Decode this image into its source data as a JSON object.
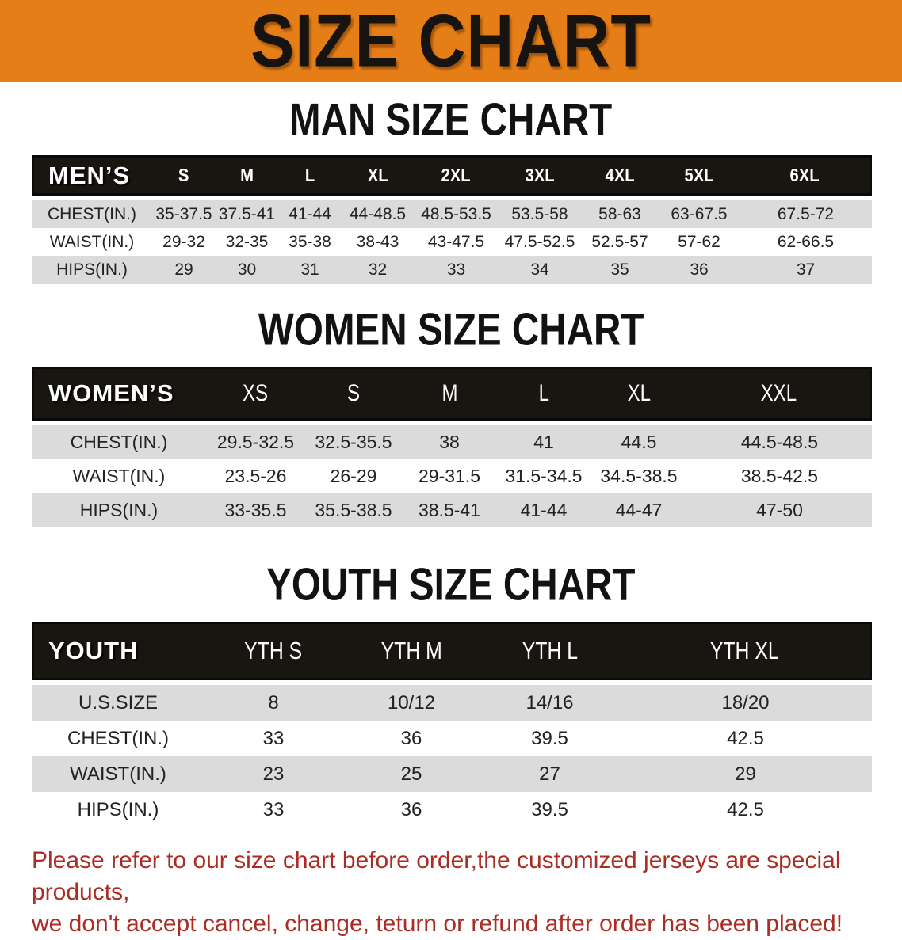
{
  "banner": {
    "title": "SIZE CHART",
    "bg_color": "#e67e17",
    "text_color": "#161310"
  },
  "sections": {
    "men": {
      "heading": "MAN SIZE CHART",
      "header_label": "MEN’S",
      "columns": [
        "S",
        "M",
        "L",
        "XL",
        "2XL",
        "3XL",
        "4XL",
        "5XL",
        "6XL"
      ],
      "rows": [
        {
          "label": "CHEST(IN.)",
          "values": [
            "35-37.5",
            "37.5-41",
            "41-44",
            "44-48.5",
            "48.5-53.5",
            "53.5-58",
            "58-63",
            "63-67.5",
            "67.5-72"
          ]
        },
        {
          "label": "WAIST(IN.)",
          "values": [
            "29-32",
            "32-35",
            "35-38",
            "38-43",
            "43-47.5",
            "47.5-52.5",
            "52.5-57",
            "57-62",
            "62-66.5"
          ]
        },
        {
          "label": "HIPS(IN.)",
          "values": [
            "29",
            "30",
            "31",
            "32",
            "33",
            "34",
            "35",
            "36",
            "37"
          ]
        }
      ]
    },
    "women": {
      "heading": "WOMEN SIZE CHART",
      "header_label": "WOMEN’S",
      "columns": [
        "XS",
        "S",
        "M",
        "L",
        "XL",
        "XXL"
      ],
      "rows": [
        {
          "label": "CHEST(IN.)",
          "values": [
            "29.5-32.5",
            "32.5-35.5",
            "38",
            "41",
            "44.5",
            "44.5-48.5"
          ]
        },
        {
          "label": "WAIST(IN.)",
          "values": [
            "23.5-26",
            "26-29",
            "29-31.5",
            "31.5-34.5",
            "34.5-38.5",
            "38.5-42.5"
          ]
        },
        {
          "label": "HIPS(IN.)",
          "values": [
            "33-35.5",
            "35.5-38.5",
            "38.5-41",
            "41-44",
            "44-47",
            "47-50"
          ]
        }
      ]
    },
    "youth": {
      "heading": "YOUTH SIZE CHART",
      "header_label": "YOUTH",
      "columns": [
        "YTH S",
        "YTH M",
        "YTH L",
        "YTH XL"
      ],
      "rows": [
        {
          "label": "U.S.SIZE",
          "values": [
            "8",
            "10/12",
            "14/16",
            "18/20"
          ]
        },
        {
          "label": "CHEST(IN.)",
          "values": [
            "33",
            "36",
            "39.5",
            "42.5"
          ]
        },
        {
          "label": "WAIST(IN.)",
          "values": [
            "23",
            "25",
            "27",
            "29"
          ]
        },
        {
          "label": "HIPS(IN.)",
          "values": [
            "33",
            "36",
            "39.5",
            "42.5"
          ]
        }
      ]
    }
  },
  "footer": {
    "line1": "Please refer to our size chart before order,the customized jerseys are special products,",
    "line2": "we don't accept cancel, change, teturn or refund after order has been placed!",
    "text_color": "#ab2c23"
  },
  "colors": {
    "header_row_bg": "#191511",
    "stripe_gray": "#dbdbdb",
    "stripe_white": "#ffffff"
  }
}
